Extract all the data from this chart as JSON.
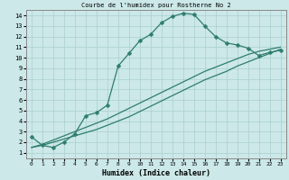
{
  "title": "Courbe de l'humidex pour Rostherne No 2",
  "xlabel": "Humidex (Indice chaleur)",
  "xlim": [
    -0.5,
    23.5
  ],
  "ylim": [
    0.5,
    14.5
  ],
  "xticks": [
    0,
    1,
    2,
    3,
    4,
    5,
    6,
    7,
    8,
    9,
    10,
    11,
    12,
    13,
    14,
    15,
    16,
    17,
    18,
    19,
    20,
    21,
    22,
    23
  ],
  "yticks": [
    1,
    2,
    3,
    4,
    5,
    6,
    7,
    8,
    9,
    10,
    11,
    12,
    13,
    14
  ],
  "bg_color": "#cce8e8",
  "line_color": "#2e7d6e",
  "grid_color": "#aacfcf",
  "line1_x": [
    0,
    1,
    2,
    3,
    4,
    5,
    6,
    7,
    8,
    9,
    10,
    11,
    12,
    13,
    14,
    15,
    16,
    17,
    18,
    19,
    20,
    21,
    22,
    23
  ],
  "line1_y": [
    2.5,
    1.7,
    1.5,
    2.0,
    2.8,
    4.5,
    4.8,
    5.5,
    9.2,
    10.4,
    11.6,
    12.2,
    13.3,
    13.9,
    14.2,
    14.1,
    13.0,
    12.0,
    11.4,
    11.2,
    10.9,
    10.2,
    10.5,
    10.7
  ],
  "line2_x": [
    0,
    1,
    2,
    3,
    4,
    5,
    6,
    7,
    8,
    9,
    10,
    11,
    12,
    13,
    14,
    15,
    16,
    17,
    18,
    19,
    20,
    21,
    22,
    23
  ],
  "line2_y": [
    1.5,
    1.7,
    2.0,
    2.3,
    2.6,
    2.9,
    3.2,
    3.6,
    4.0,
    4.4,
    4.9,
    5.4,
    5.9,
    6.4,
    6.9,
    7.4,
    7.9,
    8.3,
    8.7,
    9.2,
    9.6,
    10.0,
    10.4,
    10.8
  ],
  "line3_x": [
    0,
    1,
    2,
    3,
    4,
    5,
    6,
    7,
    8,
    9,
    10,
    11,
    12,
    13,
    14,
    15,
    16,
    17,
    18,
    19,
    20,
    21,
    22,
    23
  ],
  "line3_y": [
    1.5,
    1.8,
    2.2,
    2.6,
    3.0,
    3.4,
    3.8,
    4.2,
    4.7,
    5.2,
    5.7,
    6.2,
    6.7,
    7.2,
    7.7,
    8.2,
    8.7,
    9.1,
    9.5,
    9.9,
    10.3,
    10.6,
    10.8,
    11.0
  ]
}
